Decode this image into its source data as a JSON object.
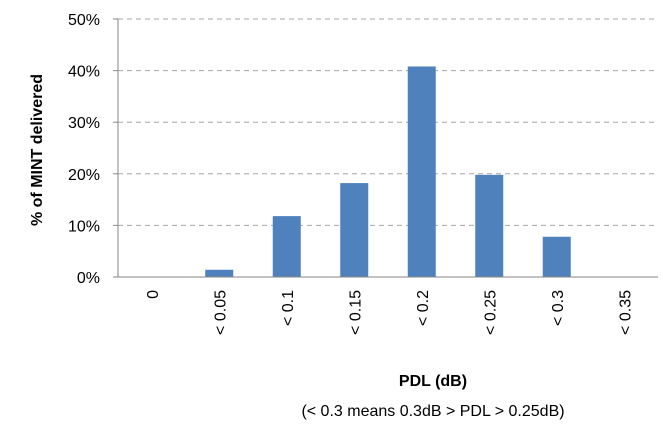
{
  "chart_data": {
    "type": "bar",
    "categories": [
      "0",
      "< 0.05",
      "< 0.1",
      "< 0.15",
      "< 0.2",
      "< 0.25",
      "< 0.3",
      "< 0.35"
    ],
    "values": [
      0,
      1.4,
      11.8,
      18.2,
      40.8,
      19.8,
      7.8,
      0
    ],
    "ylim": [
      0,
      50
    ],
    "yticks": [
      0,
      10,
      20,
      30,
      40,
      50
    ],
    "ytick_labels": [
      "0%",
      "10%",
      "20%",
      "30%",
      "40%",
      "50%"
    ],
    "xlabel": "PDL (dB)",
    "xlabel_note": "(< 0.3 means 0.3dB > PDL > 0.25dB)",
    "ylabel": "% of MINT delivered",
    "grid": true,
    "bar_color": "#4f81bd"
  }
}
